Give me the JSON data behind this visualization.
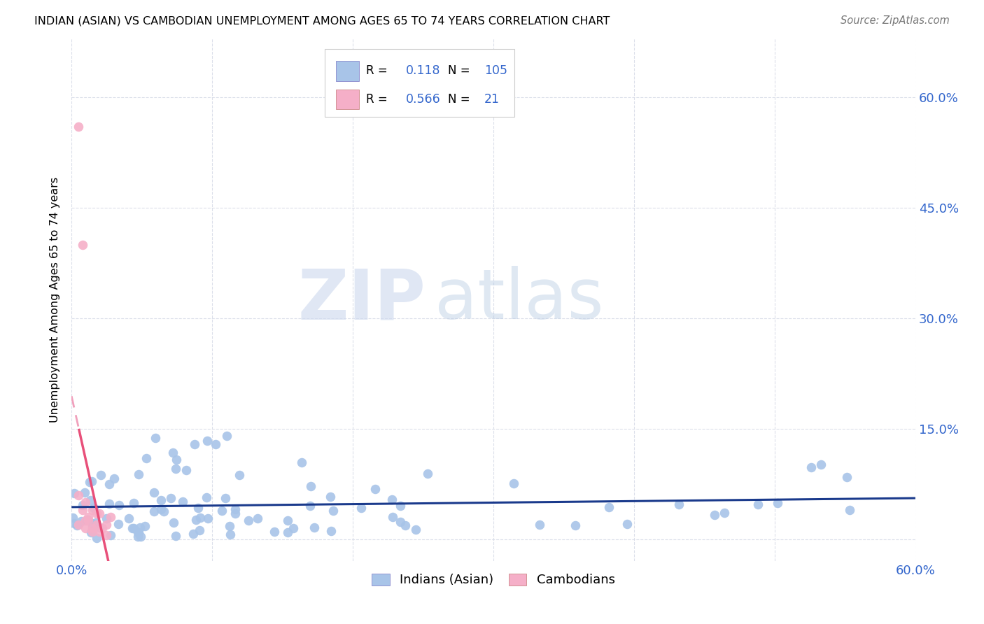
{
  "title": "INDIAN (ASIAN) VS CAMBODIAN UNEMPLOYMENT AMONG AGES 65 TO 74 YEARS CORRELATION CHART",
  "source": "Source: ZipAtlas.com",
  "ylabel": "Unemployment Among Ages 65 to 74 years",
  "xlim": [
    0.0,
    0.6
  ],
  "ylim": [
    -0.03,
    0.68
  ],
  "x_ticks": [
    0.0,
    0.1,
    0.2,
    0.3,
    0.4,
    0.5,
    0.6
  ],
  "x_tick_labels": [
    "0.0%",
    "",
    "",
    "",
    "",
    "",
    "60.0%"
  ],
  "y_tick_vals": [
    0.0,
    0.15,
    0.3,
    0.45,
    0.6
  ],
  "y_tick_labels": [
    "",
    "15.0%",
    "30.0%",
    "45.0%",
    "60.0%"
  ],
  "legend_indian_label": "Indians (Asian)",
  "legend_cambodian_label": "Cambodians",
  "indian_color": "#a8c4e8",
  "cambodian_color": "#f5afc8",
  "indian_line_color": "#1a3a8c",
  "cambodian_line_color": "#e8507a",
  "cambodian_line_dash_color": "#f0a0bc",
  "indian_R": 0.118,
  "indian_N": 105,
  "cambodian_R": 0.566,
  "cambodian_N": 21,
  "watermark_zip": "ZIP",
  "watermark_atlas": "atlas",
  "grid_color": "#d8dce8",
  "tick_label_color": "#3366cc"
}
